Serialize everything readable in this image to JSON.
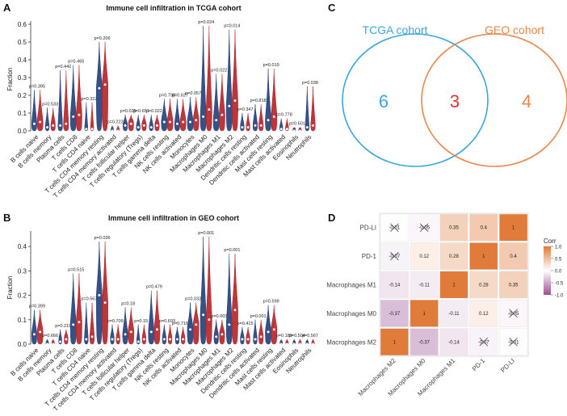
{
  "panels": {
    "a": "A",
    "b": "B",
    "c": "C",
    "d": "D"
  },
  "chart_data": [
    {
      "id": "A",
      "type": "violin",
      "title": "Immune cell infiltration in TCGA cohort",
      "ylabel": "Fraction",
      "ylim": [
        0,
        0.6
      ],
      "yticks": [
        "0.0",
        "0.1",
        "0.2",
        "0.3",
        "0.4",
        "0.5",
        "0.6"
      ],
      "series": [
        {
          "name": "Low",
          "color": "#1f3f7a"
        },
        {
          "name": "High",
          "color": "#b52025"
        }
      ],
      "categories": [
        "B cells naive",
        "B cells memory",
        "Plasma cells",
        "T cells CD8",
        "T cells CD4 naive",
        "T cells CD4 memory resting",
        "T cells CD4 memory activated",
        "T cells follicular helper",
        "T cells regulatory (Tregs)",
        "T cells gamma delta",
        "NK cells resting",
        "NK cells activated",
        "Monocytes",
        "Macrophages M0",
        "Macrophages M1",
        "Macrophages M2",
        "Dendritic cells resting",
        "Dendritic cells activated",
        "Mast cells resting",
        "Mast cells activated",
        "Eosinophils",
        "Neutrophils"
      ],
      "pvalues": [
        "p=0.395",
        "p=0.533",
        "p=0.442",
        "p=0.465",
        "p=0.322",
        "p=0.206",
        "p=0.222",
        "p=0.025",
        "p=0.651",
        "p=0.022",
        "p=0.798",
        "p=0.627",
        "p=0.057",
        "p=0.024",
        "p=0.022",
        "p=0.014",
        "p=0.347",
        "p=0.818",
        "p=0.019",
        "p=0.778",
        "p=0.501",
        "p=0.038"
      ],
      "max": [
        0.23,
        0.13,
        0.34,
        0.37,
        0.16,
        0.5,
        0.03,
        0.09,
        0.09,
        0.09,
        0.18,
        0.18,
        0.19,
        0.59,
        0.32,
        0.57,
        0.1,
        0.15,
        0.35,
        0.07,
        0.02,
        0.25
      ],
      "median_low": [
        0.04,
        0.02,
        0.03,
        0.08,
        0.01,
        0.24,
        0.0,
        0.03,
        0.02,
        0.02,
        0.05,
        0.04,
        0.05,
        0.08,
        0.06,
        0.14,
        0.02,
        0.03,
        0.06,
        0.01,
        0.0,
        0.02
      ],
      "median_high": [
        0.05,
        0.03,
        0.04,
        0.09,
        0.01,
        0.26,
        0.0,
        0.04,
        0.03,
        0.03,
        0.05,
        0.05,
        0.06,
        0.12,
        0.09,
        0.17,
        0.02,
        0.03,
        0.08,
        0.01,
        0.0,
        0.03
      ]
    },
    {
      "id": "B",
      "type": "violin",
      "title": "Immune cell infiltration in GEO cohort",
      "ylabel": "Fraction",
      "ylim": [
        0,
        0.45
      ],
      "yticks": [
        "0.0",
        "0.1",
        "0.2",
        "0.3",
        "0.4"
      ],
      "series": [
        {
          "name": "Low",
          "color": "#1f3f7a"
        },
        {
          "name": "High",
          "color": "#b52025"
        }
      ],
      "categories": [
        "B cells naive",
        "B cells memory",
        "Plasma cells",
        "T cells CD8",
        "T cells CD4 naive",
        "T cells CD4 memory resting",
        "T cells CD4 memory activated",
        "T cells follicular helper",
        "T cells regulatory (Tregs)",
        "T cells gamma delta",
        "NK cells resting",
        "NK cells activated",
        "Monocytes",
        "Macrophages M0",
        "Macrophages M1",
        "Macrophages M2",
        "Dendritic cells resting",
        "Dendritic cells activated",
        "Mast cells resting",
        "Mast cells activated",
        "Eosinophils",
        "Neutrophils"
      ],
      "pvalues": [
        "p=0.399",
        "p=0.666",
        "p=0.219",
        "p=0.515",
        "p=0.567",
        "p=0.036",
        "p=0.709",
        "p=0.18",
        "p=0.15",
        "p=0.479",
        "p=0.693",
        "p=0.716",
        "p=0.032",
        "p=0.001",
        "p=0.003",
        "p=0.001",
        "p=0.415",
        "p=0.001",
        "p=0.599",
        "p=0.189",
        "p=0.504",
        "p=0.567"
      ],
      "max": [
        0.14,
        0.02,
        0.06,
        0.29,
        0.17,
        0.42,
        0.08,
        0.15,
        0.08,
        0.22,
        0.08,
        0.07,
        0.17,
        0.44,
        0.1,
        0.37,
        0.07,
        0.1,
        0.16,
        0.02,
        0.02,
        0.02
      ],
      "median_low": [
        0.04,
        0.0,
        0.01,
        0.08,
        0.02,
        0.2,
        0.02,
        0.04,
        0.01,
        0.05,
        0.02,
        0.02,
        0.06,
        0.12,
        0.03,
        0.08,
        0.02,
        0.02,
        0.05,
        0.0,
        0.0,
        0.0
      ],
      "median_high": [
        0.05,
        0.0,
        0.02,
        0.09,
        0.03,
        0.17,
        0.02,
        0.05,
        0.02,
        0.06,
        0.02,
        0.02,
        0.08,
        0.1,
        0.04,
        0.14,
        0.02,
        0.03,
        0.06,
        0.0,
        0.0,
        0.0
      ]
    },
    {
      "id": "C",
      "type": "venn",
      "sets": [
        {
          "name": "TCGA cohort",
          "only": "6",
          "color": "#3aa6dc"
        },
        {
          "name": "GEO cohort",
          "only": "4",
          "color": "#e8874a"
        }
      ],
      "intersection": "3",
      "intersection_color": "#e8322e"
    },
    {
      "id": "D",
      "type": "heatmap",
      "rows": [
        "PD-LI",
        "PD-1",
        "Macrophages M1",
        "Macrophages M0",
        "Macrophages M2"
      ],
      "cols": [
        "Macrophages M2",
        "Macrophages M0",
        "Macrophages M1",
        "PD-1",
        "PD-LI"
      ],
      "values": [
        [
          -0.01,
          -0.05,
          0.35,
          0.4,
          1
        ],
        [
          -0.07,
          0.12,
          0.28,
          1,
          0.4
        ],
        [
          -0.14,
          -0.11,
          1,
          0.28,
          0.35
        ],
        [
          -0.37,
          1,
          -0.11,
          0.12,
          -0.05
        ],
        [
          1,
          -0.37,
          -0.14,
          -0.07,
          -0.01
        ]
      ],
      "labels": [
        [
          "-0.01",
          "-0.05",
          "0.35",
          "0.4",
          "1"
        ],
        [
          "-0.07",
          "0.12",
          "0.28",
          "1",
          "0.4"
        ],
        [
          "-0.14",
          "-0.11",
          "1",
          "0.28",
          "0.35"
        ],
        [
          "-0.37",
          "1",
          "-0.11",
          "0.12",
          "-0.05"
        ],
        [
          "1",
          "-0.37",
          "-0.14",
          "-0.07",
          "-0.01"
        ]
      ],
      "crossed": [
        [
          true,
          true,
          false,
          false,
          false
        ],
        [
          true,
          false,
          false,
          false,
          false
        ],
        [
          false,
          false,
          false,
          false,
          false
        ],
        [
          false,
          false,
          false,
          false,
          true
        ],
        [
          false,
          false,
          false,
          true,
          true
        ]
      ],
      "legend_title": "Corr",
      "legend_ticks": [
        "1.0",
        "0.5",
        "0.0",
        "-0.5",
        "-1.0"
      ],
      "colors": {
        "pos": "#e07b39",
        "neg": "#9b4f96",
        "mid": "#ffffff"
      }
    }
  ]
}
